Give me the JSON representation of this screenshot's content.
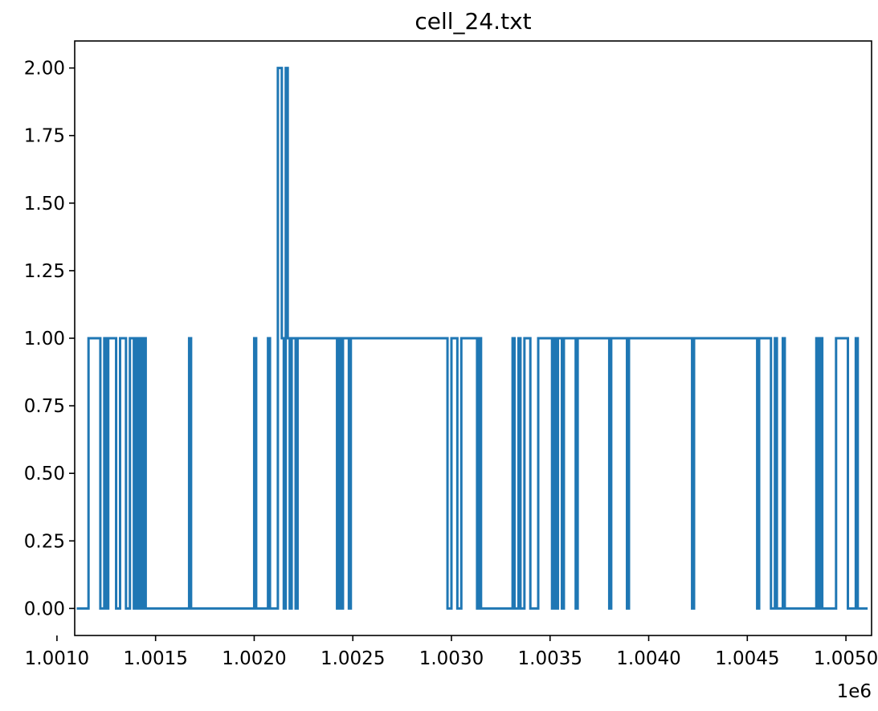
{
  "chart_data": {
    "type": "line",
    "title": "cell_24.txt",
    "xlabel": "",
    "ylabel": "",
    "x_offset_label": "1e6",
    "xlim": [
      1001090,
      1005130
    ],
    "ylim": [
      -0.1,
      2.1
    ],
    "x_ticks": [
      {
        "value": 1001000,
        "label": "1.0010"
      },
      {
        "value": 1001500,
        "label": "1.0015"
      },
      {
        "value": 1002000,
        "label": "1.0020"
      },
      {
        "value": 1002500,
        "label": "1.0025"
      },
      {
        "value": 1003000,
        "label": "1.0030"
      },
      {
        "value": 1003500,
        "label": "1.0035"
      },
      {
        "value": 1004000,
        "label": "1.0040"
      },
      {
        "value": 1004500,
        "label": "1.0045"
      },
      {
        "value": 1005000,
        "label": "1.0050"
      }
    ],
    "y_ticks": [
      {
        "value": 0.0,
        "label": "0.00"
      },
      {
        "value": 0.25,
        "label": "0.25"
      },
      {
        "value": 0.5,
        "label": "0.50"
      },
      {
        "value": 0.75,
        "label": "0.75"
      },
      {
        "value": 1.0,
        "label": "1.00"
      },
      {
        "value": 1.25,
        "label": "1.25"
      },
      {
        "value": 1.5,
        "label": "1.50"
      },
      {
        "value": 1.75,
        "label": "1.75"
      },
      {
        "value": 2.0,
        "label": "2.00"
      }
    ],
    "grid": false,
    "legend": "none",
    "colors": {
      "line": "#1f77b4",
      "axes": "#000000"
    },
    "series": [
      {
        "step": true,
        "x": [
          1001100,
          1001160,
          1001170,
          1001220,
          1001240,
          1001250,
          1001260,
          1001300,
          1001320,
          1001350,
          1001370,
          1001390,
          1001400,
          1001410,
          1001420,
          1001430,
          1001440,
          1001450,
          1001670,
          1001680,
          1002000,
          1002010,
          1002070,
          1002080,
          1002120,
          1002140,
          1002150,
          1002160,
          1002170,
          1002180,
          1002190,
          1002210,
          1002220,
          1002360,
          1002420,
          1002430,
          1002440,
          1002450,
          1002480,
          1002490,
          1002980,
          1003000,
          1003030,
          1003050,
          1003130,
          1003140,
          1003150,
          1003310,
          1003320,
          1003340,
          1003350,
          1003370,
          1003380,
          1003400,
          1003440,
          1003510,
          1003520,
          1003530,
          1003540,
          1003560,
          1003570,
          1003630,
          1003640,
          1003800,
          1003810,
          1003890,
          1003900,
          1004220,
          1004230,
          1004550,
          1004560,
          1004610,
          1004620,
          1004640,
          1004650,
          1004680,
          1004690,
          1004850,
          1004860,
          1004870,
          1004880,
          1004950,
          1005010,
          1005050,
          1005060,
          1005110
        ],
        "y": [
          0,
          1,
          1,
          0,
          1,
          0,
          1,
          0,
          1,
          0,
          1,
          0,
          1,
          0,
          1,
          0,
          1,
          0,
          1,
          0,
          1,
          0,
          1,
          0,
          2,
          1,
          0,
          2,
          1,
          0,
          1,
          0,
          1,
          1,
          0,
          1,
          0,
          1,
          0,
          1,
          0,
          1,
          0,
          1,
          0,
          1,
          0,
          1,
          0,
          1,
          0,
          1,
          1,
          0,
          1,
          0,
          1,
          0,
          1,
          0,
          1,
          0,
          1,
          0,
          1,
          0,
          1,
          0,
          1,
          0,
          1,
          1,
          0,
          1,
          0,
          1,
          0,
          1,
          0,
          1,
          0,
          1,
          0,
          1,
          0,
          0
        ]
      }
    ]
  }
}
